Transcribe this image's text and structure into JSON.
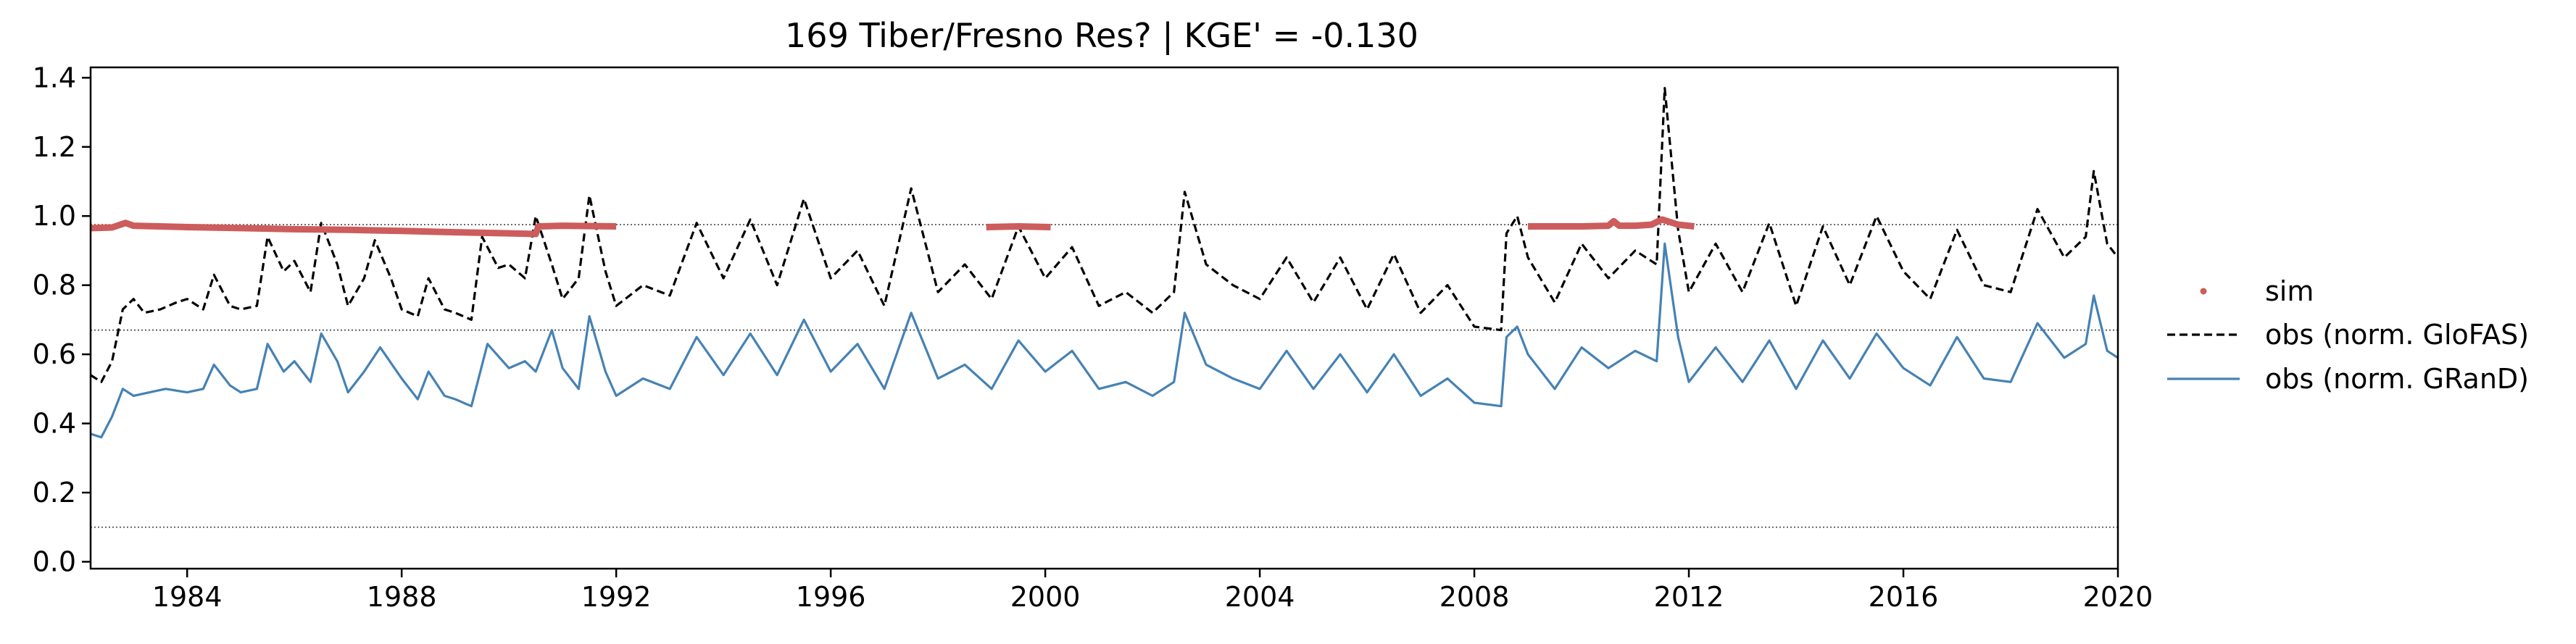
{
  "chart_data": {
    "type": "line",
    "title": "169  Tiber/Fresno Res? | KGE' = -0.130",
    "xlabel": "",
    "ylabel": "",
    "xlim": [
      1982.2,
      2020.0
    ],
    "ylim": [
      -0.02,
      1.43
    ],
    "x_ticks": [
      1984,
      1988,
      1992,
      1996,
      2000,
      2004,
      2008,
      2012,
      2016,
      2020
    ],
    "y_ticks": [
      0.0,
      0.2,
      0.4,
      0.6,
      0.8,
      1.0,
      1.2,
      1.4
    ],
    "x_tick_labels": [
      "1984",
      "1988",
      "1992",
      "1996",
      "2000",
      "2004",
      "2008",
      "2012",
      "2016",
      "2020"
    ],
    "y_tick_labels": [
      "0.0",
      "0.2",
      "0.4",
      "0.6",
      "0.8",
      "1.0",
      "1.2",
      "1.4"
    ],
    "reference_lines": [
      0.975,
      0.67,
      0.1
    ],
    "grid": false,
    "legend_position": "right, outside plot",
    "legend": [
      "sim",
      "obs (norm. GloFAS)",
      "obs (norm. GRanD)"
    ],
    "colors": {
      "sim": "#cd5c5c",
      "glofas": "#000000",
      "grand": "#4682b4",
      "ref_line": "#555555"
    },
    "series": [
      {
        "name": "sim",
        "style": "points",
        "segments": [
          {
            "x": [
              1982.2,
              1982.6,
              1982.85,
              1983.0,
              1984.0,
              1985.0,
              1986.0,
              1987.0,
              1988.0,
              1989.0,
              1990.0,
              1990.5,
              1990.55,
              1991.0,
              1992.0
            ],
            "y": [
              0.965,
              0.967,
              0.98,
              0.972,
              0.968,
              0.965,
              0.962,
              0.96,
              0.957,
              0.953,
              0.95,
              0.948,
              0.97,
              0.972,
              0.97
            ]
          },
          {
            "x": [
              1998.9,
              1999.5,
              2000.1
            ],
            "y": [
              0.968,
              0.97,
              0.968
            ]
          },
          {
            "x": [
              2009.0,
              2009.5,
              2010.0,
              2010.5,
              2010.6,
              2010.7,
              2011.0,
              2011.3,
              2011.5,
              2011.8,
              2012.1
            ],
            "y": [
              0.97,
              0.97,
              0.97,
              0.972,
              0.985,
              0.972,
              0.972,
              0.975,
              0.99,
              0.975,
              0.97
            ]
          }
        ]
      },
      {
        "name": "obs (norm. GloFAS)",
        "style": "dashed",
        "x": [
          1982.2,
          1982.4,
          1982.6,
          1982.8,
          1983.0,
          1983.2,
          1983.5,
          1983.8,
          1984.0,
          1984.3,
          1984.5,
          1984.8,
          1985.0,
          1985.3,
          1985.5,
          1985.8,
          1986.0,
          1986.3,
          1986.5,
          1986.8,
          1987.0,
          1987.3,
          1987.5,
          1987.8,
          1988.0,
          1988.3,
          1988.5,
          1988.8,
          1989.0,
          1989.3,
          1989.5,
          1989.8,
          1990.0,
          1990.3,
          1990.5,
          1990.8,
          1991.0,
          1991.3,
          1991.5,
          1991.8,
          1992.0,
          1992.5,
          1993.0,
          1993.5,
          1994.0,
          1994.5,
          1995.0,
          1995.5,
          1996.0,
          1996.5,
          1997.0,
          1997.5,
          1998.0,
          1998.5,
          1999.0,
          1999.5,
          2000.0,
          2000.5,
          2001.0,
          2001.5,
          2002.0,
          2002.4,
          2002.6,
          2003.0,
          2003.5,
          2004.0,
          2004.5,
          2005.0,
          2005.5,
          2006.0,
          2006.5,
          2007.0,
          2007.5,
          2008.0,
          2008.5,
          2008.6,
          2008.8,
          2009.0,
          2009.5,
          2010.0,
          2010.5,
          2011.0,
          2011.4,
          2011.55,
          2011.8,
          2012.0,
          2012.5,
          2013.0,
          2013.5,
          2014.0,
          2014.5,
          2015.0,
          2015.5,
          2016.0,
          2016.5,
          2017.0,
          2017.5,
          2018.0,
          2018.5,
          2019.0,
          2019.4,
          2019.55,
          2019.8,
          2020.0
        ],
        "y": [
          0.54,
          0.52,
          0.58,
          0.73,
          0.76,
          0.72,
          0.73,
          0.75,
          0.76,
          0.73,
          0.83,
          0.74,
          0.73,
          0.74,
          0.94,
          0.84,
          0.87,
          0.78,
          0.98,
          0.86,
          0.74,
          0.82,
          0.93,
          0.82,
          0.73,
          0.71,
          0.82,
          0.73,
          0.72,
          0.7,
          0.94,
          0.85,
          0.86,
          0.82,
          1.0,
          0.86,
          0.76,
          0.82,
          1.06,
          0.84,
          0.74,
          0.8,
          0.77,
          0.98,
          0.82,
          0.99,
          0.8,
          1.05,
          0.82,
          0.9,
          0.74,
          1.08,
          0.78,
          0.86,
          0.76,
          0.97,
          0.82,
          0.91,
          0.74,
          0.78,
          0.72,
          0.78,
          1.07,
          0.86,
          0.8,
          0.76,
          0.88,
          0.75,
          0.88,
          0.73,
          0.89,
          0.72,
          0.8,
          0.68,
          0.67,
          0.95,
          1.0,
          0.88,
          0.75,
          0.92,
          0.82,
          0.9,
          0.86,
          1.37,
          0.96,
          0.78,
          0.92,
          0.78,
          0.98,
          0.74,
          0.97,
          0.8,
          1.0,
          0.84,
          0.76,
          0.96,
          0.8,
          0.78,
          1.02,
          0.88,
          0.94,
          1.13,
          0.92,
          0.88
        ]
      },
      {
        "name": "obs (norm. GRanD)",
        "style": "solid",
        "x": [
          1982.2,
          1982.4,
          1982.6,
          1982.8,
          1983.0,
          1983.3,
          1983.6,
          1984.0,
          1984.3,
          1984.5,
          1984.8,
          1985.0,
          1985.3,
          1985.5,
          1985.8,
          1986.0,
          1986.3,
          1986.5,
          1986.8,
          1987.0,
          1987.3,
          1987.6,
          1988.0,
          1988.3,
          1988.5,
          1988.8,
          1989.0,
          1989.3,
          1989.6,
          1990.0,
          1990.3,
          1990.5,
          1990.8,
          1991.0,
          1991.3,
          1991.5,
          1991.8,
          1992.0,
          1992.5,
          1993.0,
          1993.5,
          1994.0,
          1994.5,
          1995.0,
          1995.5,
          1996.0,
          1996.5,
          1997.0,
          1997.5,
          1998.0,
          1998.5,
          1999.0,
          1999.5,
          2000.0,
          2000.5,
          2001.0,
          2001.5,
          2002.0,
          2002.4,
          2002.6,
          2003.0,
          2003.5,
          2004.0,
          2004.5,
          2005.0,
          2005.5,
          2006.0,
          2006.5,
          2007.0,
          2007.5,
          2008.0,
          2008.5,
          2008.6,
          2008.8,
          2009.0,
          2009.5,
          2010.0,
          2010.5,
          2011.0,
          2011.4,
          2011.55,
          2011.8,
          2012.0,
          2012.5,
          2013.0,
          2013.5,
          2014.0,
          2014.5,
          2015.0,
          2015.5,
          2016.0,
          2016.5,
          2017.0,
          2017.5,
          2018.0,
          2018.5,
          2019.0,
          2019.4,
          2019.55,
          2019.8,
          2020.0
        ],
        "y": [
          0.37,
          0.36,
          0.42,
          0.5,
          0.48,
          0.49,
          0.5,
          0.49,
          0.5,
          0.57,
          0.51,
          0.49,
          0.5,
          0.63,
          0.55,
          0.58,
          0.52,
          0.66,
          0.58,
          0.49,
          0.55,
          0.62,
          0.53,
          0.47,
          0.55,
          0.48,
          0.47,
          0.45,
          0.63,
          0.56,
          0.58,
          0.55,
          0.67,
          0.56,
          0.5,
          0.71,
          0.55,
          0.48,
          0.53,
          0.5,
          0.65,
          0.54,
          0.66,
          0.54,
          0.7,
          0.55,
          0.63,
          0.5,
          0.72,
          0.53,
          0.57,
          0.5,
          0.64,
          0.55,
          0.61,
          0.5,
          0.52,
          0.48,
          0.52,
          0.72,
          0.57,
          0.53,
          0.5,
          0.61,
          0.5,
          0.6,
          0.49,
          0.6,
          0.48,
          0.53,
          0.46,
          0.45,
          0.65,
          0.68,
          0.6,
          0.5,
          0.62,
          0.56,
          0.61,
          0.58,
          0.92,
          0.65,
          0.52,
          0.62,
          0.52,
          0.64,
          0.5,
          0.64,
          0.53,
          0.66,
          0.56,
          0.51,
          0.65,
          0.53,
          0.52,
          0.69,
          0.59,
          0.63,
          0.77,
          0.61,
          0.59
        ]
      }
    ]
  }
}
